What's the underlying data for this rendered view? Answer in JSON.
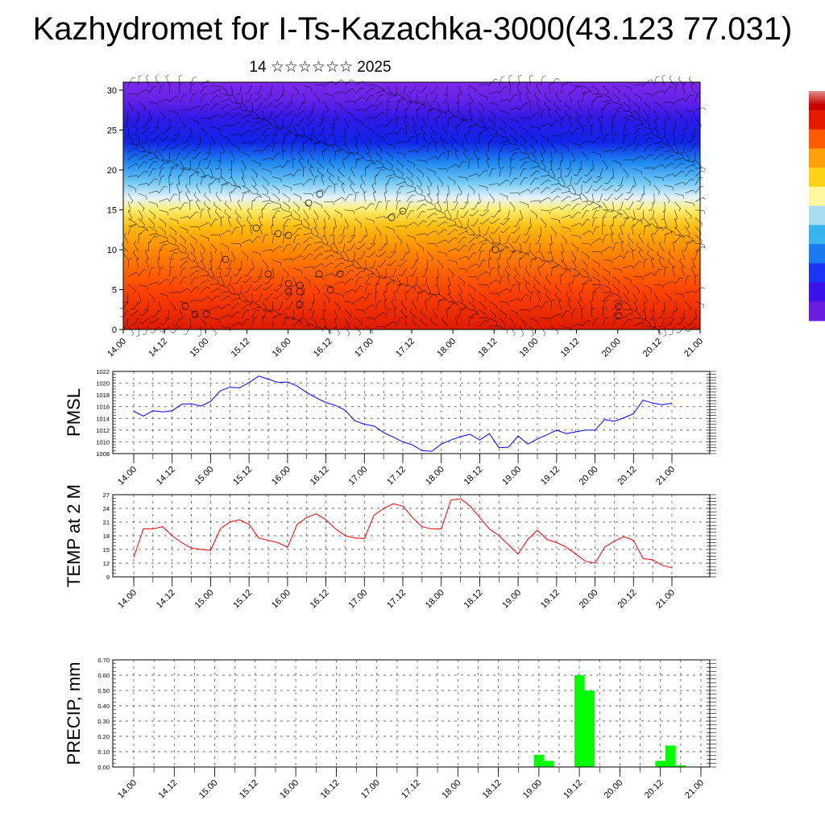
{
  "page": {
    "title": "Kazhydromet for I-Ts-Kazachka-3000(43.123 77.031)",
    "subtitle": "14 ☆☆☆☆☆☆ 2025"
  },
  "colors": {
    "pmsl_line": "#0000ff",
    "temp_line": "#ff0000",
    "precip_bar": "#00ff00",
    "grid": "#000000"
  },
  "chart_data": [
    {
      "type": "heatmap",
      "name": "cross-section",
      "title": "",
      "x_ticks": [
        "14.00",
        "14.12",
        "15.00",
        "15.12",
        "16.00",
        "16.12",
        "17.00",
        "17.12",
        "18.00",
        "18.12",
        "19.00",
        "19.12",
        "20.00",
        "20.12",
        "21.00"
      ],
      "y_ticks": [
        0,
        5,
        10,
        15,
        20,
        25,
        30
      ],
      "ylim": [
        0,
        31
      ],
      "colorbar": [
        "#6a1de0",
        "#3b12e8",
        "#1d33f5",
        "#1c7af0",
        "#38b3ee",
        "#a8ddf3",
        "#fff6a0",
        "#ffd21a",
        "#ff9f0a",
        "#ff5a00",
        "#e61a00",
        "#c80000"
      ],
      "levels": [
        {
          "h": 0,
          "color": "#dd1a00"
        },
        {
          "h": 5,
          "color": "#ff4400"
        },
        {
          "h": 10,
          "color": "#ff8a00"
        },
        {
          "h": 13,
          "color": "#ffbf10"
        },
        {
          "h": 15,
          "color": "#ffee70"
        },
        {
          "h": 16.5,
          "color": "#e6f2fa"
        },
        {
          "h": 18.5,
          "color": "#6fc8f3"
        },
        {
          "h": 21,
          "color": "#1d86f0"
        },
        {
          "h": 23.5,
          "color": "#1024e8"
        },
        {
          "h": 26.5,
          "color": "#2f1ae6"
        },
        {
          "h": 29,
          "color": "#6a22e8"
        },
        {
          "h": 31,
          "color": "#7a2aea"
        }
      ]
    },
    {
      "type": "line",
      "name": "pmsl",
      "ylabel": "PMSL",
      "x_ticks": [
        "14.00",
        "14.12",
        "15.00",
        "15.12",
        "16.00",
        "16.12",
        "17.00",
        "17.12",
        "18.00",
        "18.12",
        "19.00",
        "19.12",
        "20.00",
        "20.12",
        "21.00"
      ],
      "y_ticks": [
        1008,
        1010,
        1012,
        1014,
        1016,
        1018,
        1020,
        1022
      ],
      "ylim": [
        1008,
        1022
      ],
      "values": [
        1015.2,
        1014.4,
        1015.3,
        1015.1,
        1015.3,
        1016.4,
        1016.5,
        1016.1,
        1016.9,
        1018.7,
        1019.3,
        1019.2,
        1020.1,
        1021.2,
        1020.7,
        1020.1,
        1020.2,
        1019.5,
        1018.4,
        1017.5,
        1016.7,
        1016.2,
        1015.4,
        1013.6,
        1013.0,
        1012.7,
        1011.6,
        1010.8,
        1010.0,
        1009.5,
        1008.5,
        1008.4,
        1009.6,
        1010.3,
        1010.9,
        1011.3,
        1010.3,
        1011.4,
        1009.0,
        1009.1,
        1011.0,
        1009.6,
        1010.5,
        1011.2,
        1012.0,
        1011.4,
        1011.7,
        1012.0,
        1012.0,
        1013.8,
        1013.5,
        1014.1,
        1014.8,
        1017.1,
        1016.6,
        1016.3,
        1016.6
      ]
    },
    {
      "type": "line",
      "name": "temp",
      "ylabel": "TEMP at 2 M",
      "x_ticks": [
        "14.00",
        "14.12",
        "15.00",
        "15.12",
        "16.00",
        "16.12",
        "17.00",
        "17.12",
        "18.00",
        "18.12",
        "19.00",
        "19.12",
        "20.00",
        "20.12",
        "21.00"
      ],
      "y_ticks": [
        9,
        12,
        15,
        18,
        21,
        24,
        27
      ],
      "ylim": [
        9,
        27
      ],
      "values": [
        13.3,
        19.5,
        19.5,
        20.0,
        18.0,
        16.5,
        15.3,
        15.0,
        14.8,
        19.5,
        21.0,
        21.5,
        20.5,
        17.5,
        17.0,
        16.5,
        15.5,
        20.5,
        22.0,
        22.8,
        21.5,
        19.5,
        18.0,
        17.5,
        17.4,
        22.5,
        24.0,
        25.0,
        24.5,
        22.0,
        20.0,
        19.5,
        19.5,
        25.8,
        26.1,
        24.5,
        22.0,
        19.5,
        18.0,
        16.0,
        14.0,
        17.2,
        19.2,
        17.2,
        16.5,
        15.5,
        14.0,
        12.4,
        12.0,
        15.5,
        16.8,
        17.8,
        17.0,
        13.0,
        12.7,
        11.5,
        11.0
      ]
    },
    {
      "type": "bar",
      "name": "precip",
      "ylabel": "PRECIP, mm",
      "x_ticks": [
        "14.00",
        "14.12",
        "15.00",
        "15.12",
        "16.00",
        "16.12",
        "17.00",
        "17.12",
        "18.00",
        "18.12",
        "19.00",
        "19.12",
        "20.00",
        "20.12",
        "21.00"
      ],
      "y_ticks": [
        "0.00",
        "0.10",
        "0.20",
        "0.30",
        "0.40",
        "0.50",
        "0.60",
        "0.70"
      ],
      "ylim": [
        0,
        0.7
      ],
      "values": [
        0,
        0,
        0,
        0,
        0,
        0,
        0,
        0,
        0,
        0,
        0,
        0,
        0,
        0,
        0,
        0,
        0,
        0,
        0,
        0,
        0,
        0,
        0,
        0,
        0,
        0,
        0,
        0,
        0,
        0,
        0,
        0,
        0,
        0,
        0,
        0,
        0,
        0,
        0,
        0,
        0.08,
        0.04,
        0,
        0,
        0.6,
        0.5,
        0,
        0,
        0,
        0,
        0,
        0,
        0.04,
        0.14,
        0.01,
        0,
        0
      ]
    }
  ]
}
